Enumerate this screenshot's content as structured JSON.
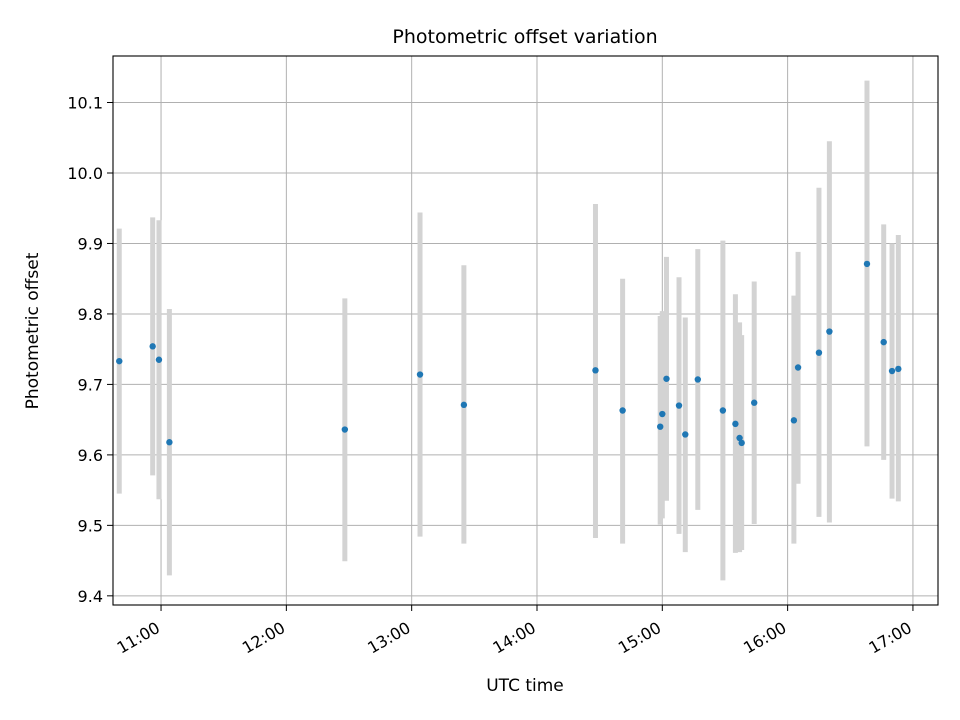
{
  "chart_data": {
    "type": "scatter",
    "title": "Photometric offset variation",
    "xlabel": "UTC time",
    "ylabel": "Photometric offset",
    "x_tick_labels": [
      "11:00",
      "12:00",
      "13:00",
      "14:00",
      "15:00",
      "16:00",
      "17:00"
    ],
    "y_tick_labels": [
      "9.4",
      "9.5",
      "9.6",
      "9.7",
      "9.8",
      "9.9",
      "10.0",
      "10.1"
    ],
    "xlim": [
      "10:37",
      "17:12"
    ],
    "ylim": [
      9.387,
      10.166
    ],
    "grid": true,
    "marker_color": "#1f77b4",
    "errorbar_color": "#d3d3d3",
    "points": [
      {
        "time": "10:40",
        "y": 9.733,
        "ylow": 9.545,
        "yhigh": 9.921
      },
      {
        "time": "10:56",
        "y": 9.754,
        "ylow": 9.571,
        "yhigh": 9.937
      },
      {
        "time": "10:59",
        "y": 9.735,
        "ylow": 9.537,
        "yhigh": 9.933
      },
      {
        "time": "11:04",
        "y": 9.618,
        "ylow": 9.429,
        "yhigh": 9.807
      },
      {
        "time": "12:28",
        "y": 9.636,
        "ylow": 9.449,
        "yhigh": 9.822
      },
      {
        "time": "13:04",
        "y": 9.714,
        "ylow": 9.484,
        "yhigh": 9.944
      },
      {
        "time": "13:25",
        "y": 9.671,
        "ylow": 9.474,
        "yhigh": 9.869
      },
      {
        "time": "14:28",
        "y": 9.72,
        "ylow": 9.482,
        "yhigh": 9.956
      },
      {
        "time": "14:41",
        "y": 9.663,
        "ylow": 9.474,
        "yhigh": 9.85
      },
      {
        "time": "14:59",
        "y": 9.64,
        "ylow": 9.501,
        "yhigh": 9.797
      },
      {
        "time": "15:00",
        "y": 9.658,
        "ylow": 9.51,
        "yhigh": 9.804
      },
      {
        "time": "15:02",
        "y": 9.708,
        "ylow": 9.535,
        "yhigh": 9.881
      },
      {
        "time": "15:08",
        "y": 9.67,
        "ylow": 9.488,
        "yhigh": 9.852
      },
      {
        "time": "15:11",
        "y": 9.629,
        "ylow": 9.462,
        "yhigh": 9.795
      },
      {
        "time": "15:17",
        "y": 9.707,
        "ylow": 9.522,
        "yhigh": 9.892
      },
      {
        "time": "15:29",
        "y": 9.663,
        "ylow": 9.422,
        "yhigh": 9.904
      },
      {
        "time": "15:35",
        "y": 9.644,
        "ylow": 9.461,
        "yhigh": 9.828
      },
      {
        "time": "15:37",
        "y": 9.624,
        "ylow": 9.462,
        "yhigh": 9.788
      },
      {
        "time": "15:38",
        "y": 9.617,
        "ylow": 9.465,
        "yhigh": 9.77
      },
      {
        "time": "15:44",
        "y": 9.674,
        "ylow": 9.502,
        "yhigh": 9.846
      },
      {
        "time": "16:03",
        "y": 9.649,
        "ylow": 9.474,
        "yhigh": 9.826
      },
      {
        "time": "16:05",
        "y": 9.724,
        "ylow": 9.559,
        "yhigh": 9.888
      },
      {
        "time": "16:15",
        "y": 9.745,
        "ylow": 9.512,
        "yhigh": 9.979
      },
      {
        "time": "16:20",
        "y": 9.775,
        "ylow": 9.504,
        "yhigh": 10.045
      },
      {
        "time": "16:38",
        "y": 9.871,
        "ylow": 9.612,
        "yhigh": 10.131
      },
      {
        "time": "16:46",
        "y": 9.76,
        "ylow": 9.593,
        "yhigh": 9.927
      },
      {
        "time": "16:50",
        "y": 9.719,
        "ylow": 9.538,
        "yhigh": 9.9
      },
      {
        "time": "16:53",
        "y": 9.722,
        "ylow": 9.534,
        "yhigh": 9.912
      }
    ]
  }
}
